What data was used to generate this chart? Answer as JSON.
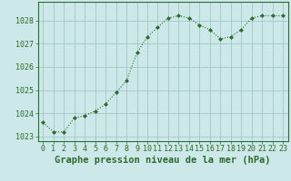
{
  "hours": [
    0,
    1,
    2,
    3,
    4,
    5,
    6,
    7,
    8,
    9,
    10,
    11,
    12,
    13,
    14,
    15,
    16,
    17,
    18,
    19,
    20,
    21,
    22,
    23
  ],
  "pressure": [
    1023.6,
    1023.2,
    1023.2,
    1023.8,
    1023.9,
    1024.1,
    1024.4,
    1024.9,
    1025.4,
    1026.6,
    1027.3,
    1027.7,
    1028.1,
    1028.2,
    1028.1,
    1027.8,
    1027.6,
    1027.2,
    1027.3,
    1027.6,
    1028.1,
    1028.2,
    1028.2,
    1028.2
  ],
  "line_color": "#2d6a2d",
  "marker_color": "#2d6a2d",
  "bg_color": "#cce8e8",
  "grid_color": "#9bbfbf",
  "axis_color": "#2d6a2d",
  "xlabel": "Graphe pression niveau de la mer (hPa)",
  "ylim_min": 1022.8,
  "ylim_max": 1028.8,
  "yticks": [
    1023,
    1024,
    1025,
    1026,
    1027,
    1028
  ],
  "title_fontsize": 7.5,
  "tick_fontsize": 6.0,
  "label_color": "#2d6a2d"
}
